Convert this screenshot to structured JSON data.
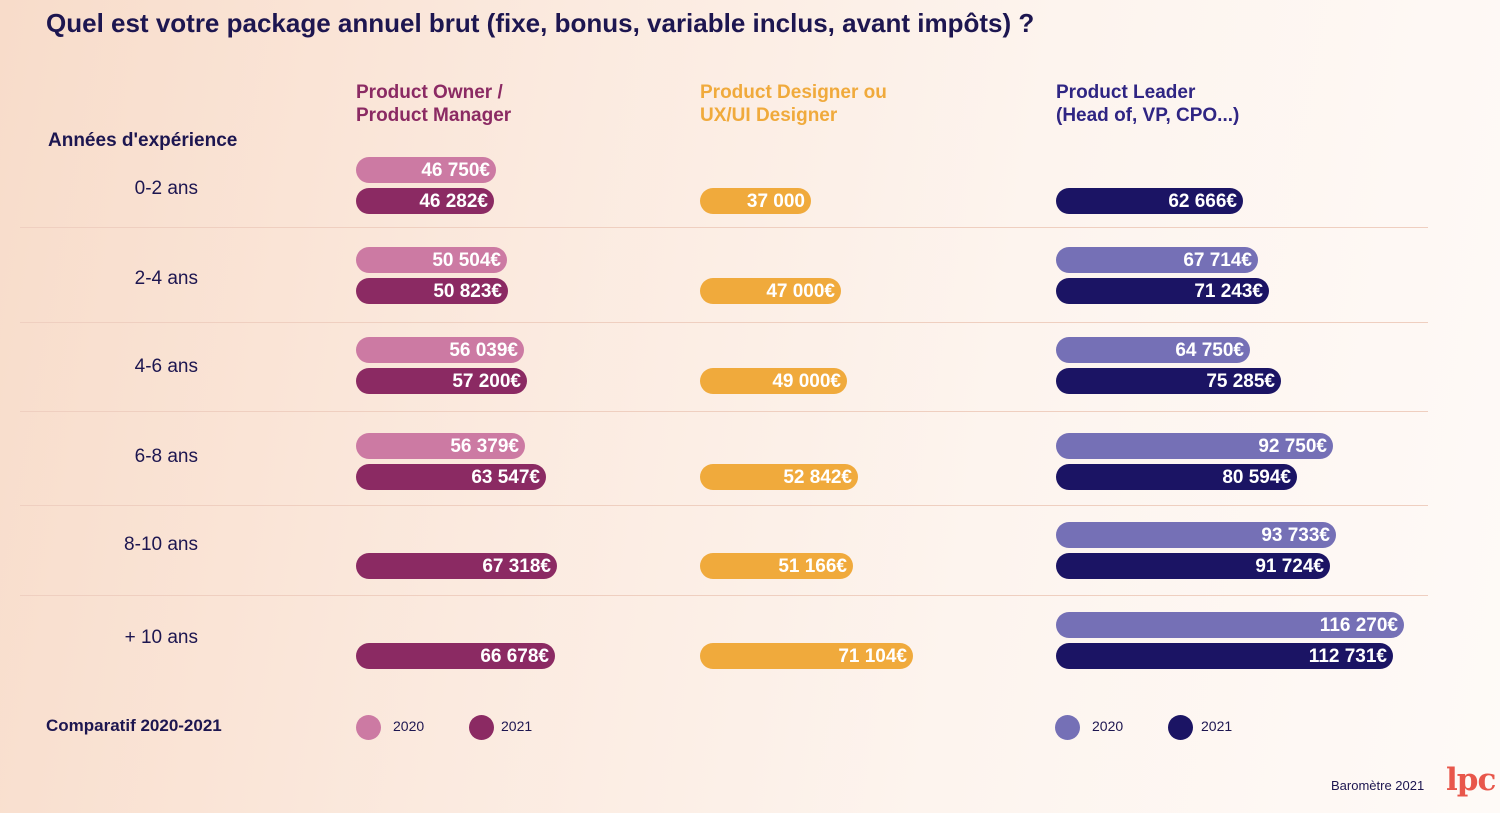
{
  "title": "Quel est votre package annuel brut (fixe, bonus, variable inclus, avant impôts) ?",
  "row_header": "Années d'expérience",
  "groups": [
    {
      "line1": "Product Owner /",
      "line2": "Product Manager",
      "color": "#8b2a63"
    },
    {
      "line1": "Product Designer ou",
      "line2": "UX/UI Designer",
      "color": "#f0aa3c"
    },
    {
      "line1": "Product Leader",
      "line2": "(Head of, VP, CPO...)",
      "color": "#2f2583"
    }
  ],
  "chart_data": {
    "type": "bar",
    "orientation": "horizontal",
    "categories": [
      "0-2 ans",
      "2-4 ans",
      "4-6 ans",
      "6-8 ans",
      "8-10 ans",
      "+ 10 ans"
    ],
    "colors": {
      "po_2020": "#cc7aa3",
      "po_2021": "#8b2a63",
      "designer": "#f0aa3c",
      "leader_2020": "#7570b6",
      "leader_2021": "#1b1464"
    },
    "series": [
      {
        "group": "Product Owner / Product Manager",
        "name": "2020",
        "color_key": "po_2020",
        "values": [
          46750,
          50504,
          56039,
          56379,
          null,
          null
        ],
        "labels": [
          "46 750€",
          "50 504€",
          "56 039€",
          "56 379€",
          null,
          null
        ]
      },
      {
        "group": "Product Owner / Product Manager",
        "name": "2021",
        "color_key": "po_2021",
        "values": [
          46282,
          50823,
          57200,
          63547,
          67318,
          66678
        ],
        "labels": [
          "46 282€",
          "50 823€",
          "57 200€",
          "63 547€",
          "67 318€",
          "66 678€"
        ]
      },
      {
        "group": "Product Designer ou UX/UI Designer",
        "name": "2021",
        "color_key": "designer",
        "values": [
          37000,
          47000,
          49000,
          52842,
          51166,
          71104
        ],
        "labels": [
          "37 000",
          "47 000€",
          "49 000€",
          "52 842€",
          "51 166€",
          "71 104€"
        ]
      },
      {
        "group": "Product Leader (Head of, VP, CPO...)",
        "name": "2020",
        "color_key": "leader_2020",
        "values": [
          null,
          67714,
          64750,
          92750,
          93733,
          116270
        ],
        "labels": [
          null,
          "67 714€",
          "64 750€",
          "92 750€",
          "93 733€",
          "116 270€"
        ]
      },
      {
        "group": "Product Leader (Head of, VP, CPO...)",
        "name": "2021",
        "color_key": "leader_2021",
        "values": [
          62666,
          71243,
          75285,
          80594,
          91724,
          112731
        ],
        "labels": [
          "62 666€",
          "71 243€",
          "75 285€",
          "80 594€",
          "91 724€",
          "112 731€"
        ]
      }
    ]
  },
  "legend": {
    "title": "Comparatif 2020-2021",
    "items": [
      {
        "label": "2020",
        "color": "#cc7aa3"
      },
      {
        "label": "2021",
        "color": "#8b2a63"
      },
      {
        "label": "2020",
        "color": "#7570b6"
      },
      {
        "label": "2021",
        "color": "#1b1464"
      }
    ]
  },
  "footer": "Baromètre 2021",
  "logo_text": "lpc"
}
